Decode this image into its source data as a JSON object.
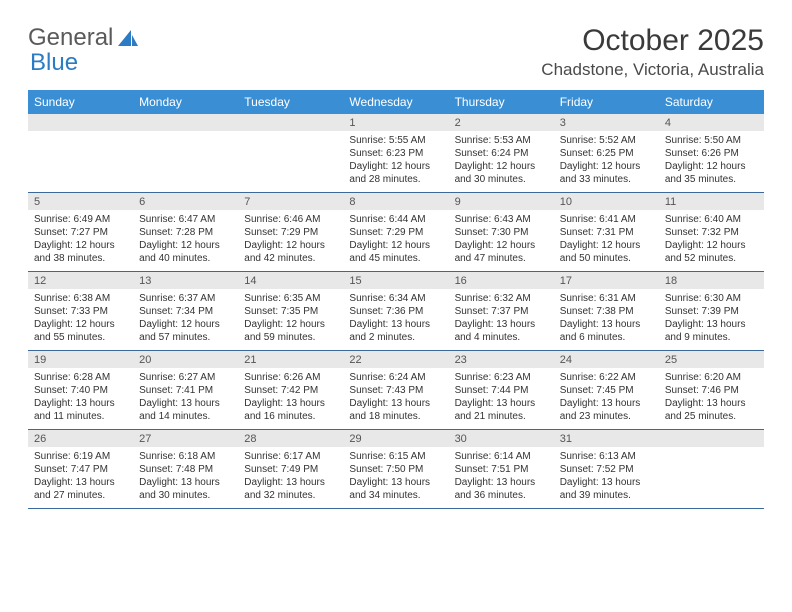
{
  "logo": {
    "text1": "General",
    "text2": "Blue"
  },
  "title": "October 2025",
  "location": "Chadstone, Victoria, Australia",
  "colors": {
    "header_bg": "#3a8fd4",
    "header_text": "#ffffff",
    "daynum_bg": "#e8e8e8",
    "week_border": "#3a6a9a",
    "logo_blue": "#2b7cc4"
  },
  "day_headers": [
    "Sunday",
    "Monday",
    "Tuesday",
    "Wednesday",
    "Thursday",
    "Friday",
    "Saturday"
  ],
  "weeks": [
    [
      {
        "n": "",
        "lines": []
      },
      {
        "n": "",
        "lines": []
      },
      {
        "n": "",
        "lines": []
      },
      {
        "n": "1",
        "lines": [
          "Sunrise: 5:55 AM",
          "Sunset: 6:23 PM",
          "Daylight: 12 hours",
          "and 28 minutes."
        ]
      },
      {
        "n": "2",
        "lines": [
          "Sunrise: 5:53 AM",
          "Sunset: 6:24 PM",
          "Daylight: 12 hours",
          "and 30 minutes."
        ]
      },
      {
        "n": "3",
        "lines": [
          "Sunrise: 5:52 AM",
          "Sunset: 6:25 PM",
          "Daylight: 12 hours",
          "and 33 minutes."
        ]
      },
      {
        "n": "4",
        "lines": [
          "Sunrise: 5:50 AM",
          "Sunset: 6:26 PM",
          "Daylight: 12 hours",
          "and 35 minutes."
        ]
      }
    ],
    [
      {
        "n": "5",
        "lines": [
          "Sunrise: 6:49 AM",
          "Sunset: 7:27 PM",
          "Daylight: 12 hours",
          "and 38 minutes."
        ]
      },
      {
        "n": "6",
        "lines": [
          "Sunrise: 6:47 AM",
          "Sunset: 7:28 PM",
          "Daylight: 12 hours",
          "and 40 minutes."
        ]
      },
      {
        "n": "7",
        "lines": [
          "Sunrise: 6:46 AM",
          "Sunset: 7:29 PM",
          "Daylight: 12 hours",
          "and 42 minutes."
        ]
      },
      {
        "n": "8",
        "lines": [
          "Sunrise: 6:44 AM",
          "Sunset: 7:29 PM",
          "Daylight: 12 hours",
          "and 45 minutes."
        ]
      },
      {
        "n": "9",
        "lines": [
          "Sunrise: 6:43 AM",
          "Sunset: 7:30 PM",
          "Daylight: 12 hours",
          "and 47 minutes."
        ]
      },
      {
        "n": "10",
        "lines": [
          "Sunrise: 6:41 AM",
          "Sunset: 7:31 PM",
          "Daylight: 12 hours",
          "and 50 minutes."
        ]
      },
      {
        "n": "11",
        "lines": [
          "Sunrise: 6:40 AM",
          "Sunset: 7:32 PM",
          "Daylight: 12 hours",
          "and 52 minutes."
        ]
      }
    ],
    [
      {
        "n": "12",
        "lines": [
          "Sunrise: 6:38 AM",
          "Sunset: 7:33 PM",
          "Daylight: 12 hours",
          "and 55 minutes."
        ]
      },
      {
        "n": "13",
        "lines": [
          "Sunrise: 6:37 AM",
          "Sunset: 7:34 PM",
          "Daylight: 12 hours",
          "and 57 minutes."
        ]
      },
      {
        "n": "14",
        "lines": [
          "Sunrise: 6:35 AM",
          "Sunset: 7:35 PM",
          "Daylight: 12 hours",
          "and 59 minutes."
        ]
      },
      {
        "n": "15",
        "lines": [
          "Sunrise: 6:34 AM",
          "Sunset: 7:36 PM",
          "Daylight: 13 hours",
          "and 2 minutes."
        ]
      },
      {
        "n": "16",
        "lines": [
          "Sunrise: 6:32 AM",
          "Sunset: 7:37 PM",
          "Daylight: 13 hours",
          "and 4 minutes."
        ]
      },
      {
        "n": "17",
        "lines": [
          "Sunrise: 6:31 AM",
          "Sunset: 7:38 PM",
          "Daylight: 13 hours",
          "and 6 minutes."
        ]
      },
      {
        "n": "18",
        "lines": [
          "Sunrise: 6:30 AM",
          "Sunset: 7:39 PM",
          "Daylight: 13 hours",
          "and 9 minutes."
        ]
      }
    ],
    [
      {
        "n": "19",
        "lines": [
          "Sunrise: 6:28 AM",
          "Sunset: 7:40 PM",
          "Daylight: 13 hours",
          "and 11 minutes."
        ]
      },
      {
        "n": "20",
        "lines": [
          "Sunrise: 6:27 AM",
          "Sunset: 7:41 PM",
          "Daylight: 13 hours",
          "and 14 minutes."
        ]
      },
      {
        "n": "21",
        "lines": [
          "Sunrise: 6:26 AM",
          "Sunset: 7:42 PM",
          "Daylight: 13 hours",
          "and 16 minutes."
        ]
      },
      {
        "n": "22",
        "lines": [
          "Sunrise: 6:24 AM",
          "Sunset: 7:43 PM",
          "Daylight: 13 hours",
          "and 18 minutes."
        ]
      },
      {
        "n": "23",
        "lines": [
          "Sunrise: 6:23 AM",
          "Sunset: 7:44 PM",
          "Daylight: 13 hours",
          "and 21 minutes."
        ]
      },
      {
        "n": "24",
        "lines": [
          "Sunrise: 6:22 AM",
          "Sunset: 7:45 PM",
          "Daylight: 13 hours",
          "and 23 minutes."
        ]
      },
      {
        "n": "25",
        "lines": [
          "Sunrise: 6:20 AM",
          "Sunset: 7:46 PM",
          "Daylight: 13 hours",
          "and 25 minutes."
        ]
      }
    ],
    [
      {
        "n": "26",
        "lines": [
          "Sunrise: 6:19 AM",
          "Sunset: 7:47 PM",
          "Daylight: 13 hours",
          "and 27 minutes."
        ]
      },
      {
        "n": "27",
        "lines": [
          "Sunrise: 6:18 AM",
          "Sunset: 7:48 PM",
          "Daylight: 13 hours",
          "and 30 minutes."
        ]
      },
      {
        "n": "28",
        "lines": [
          "Sunrise: 6:17 AM",
          "Sunset: 7:49 PM",
          "Daylight: 13 hours",
          "and 32 minutes."
        ]
      },
      {
        "n": "29",
        "lines": [
          "Sunrise: 6:15 AM",
          "Sunset: 7:50 PM",
          "Daylight: 13 hours",
          "and 34 minutes."
        ]
      },
      {
        "n": "30",
        "lines": [
          "Sunrise: 6:14 AM",
          "Sunset: 7:51 PM",
          "Daylight: 13 hours",
          "and 36 minutes."
        ]
      },
      {
        "n": "31",
        "lines": [
          "Sunrise: 6:13 AM",
          "Sunset: 7:52 PM",
          "Daylight: 13 hours",
          "and 39 minutes."
        ]
      },
      {
        "n": "",
        "lines": []
      }
    ]
  ]
}
